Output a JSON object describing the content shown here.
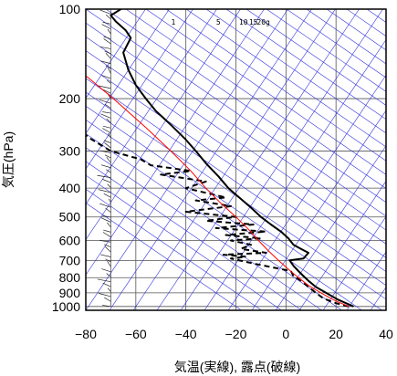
{
  "chart_data": {
    "type": "line",
    "title": "",
    "xlabel": "気温(実線), 露点(破線)",
    "ylabel": "気圧(hPa)",
    "xlim": [
      -80,
      40
    ],
    "ylim": [
      1030,
      100
    ],
    "yscale": "log",
    "x_ticks": [
      -80,
      -60,
      -40,
      -20,
      0,
      20,
      40
    ],
    "y_ticks": [
      100,
      200,
      300,
      400,
      500,
      600,
      700,
      800,
      900,
      1000
    ],
    "grid": true,
    "mixing_ratio_labels": [
      {
        "label": "1",
        "t": -45
      },
      {
        "label": "5",
        "t": -27
      },
      {
        "label": "10",
        "t": -17
      },
      {
        "label": "15",
        "t": -13
      },
      {
        "label": "20g",
        "t": -9
      }
    ],
    "series": [
      {
        "role": "temperature",
        "style": "solid",
        "color": "#000000",
        "points": [
          [
            27,
            1000
          ],
          [
            24,
            975
          ],
          [
            21,
            950
          ],
          [
            18,
            920
          ],
          [
            15,
            890
          ],
          [
            12,
            860
          ],
          [
            9,
            820
          ],
          [
            7,
            790
          ],
          [
            5,
            760
          ],
          [
            3,
            730
          ],
          [
            1.5,
            700
          ],
          [
            7,
            690
          ],
          [
            9,
            660
          ],
          [
            6,
            640
          ],
          [
            3,
            620
          ],
          [
            1,
            590
          ],
          [
            -2,
            560
          ],
          [
            -6,
            530
          ],
          [
            -10,
            500
          ],
          [
            -14,
            465
          ],
          [
            -18,
            435
          ],
          [
            -23,
            400
          ],
          [
            -27,
            365
          ],
          [
            -32,
            330
          ],
          [
            -36,
            300
          ],
          [
            -40,
            275
          ],
          [
            -46,
            245
          ],
          [
            -52,
            220
          ],
          [
            -56,
            200
          ],
          [
            -60,
            180
          ],
          [
            -63,
            160
          ],
          [
            -65,
            140
          ],
          [
            -62,
            125
          ],
          [
            -64,
            118
          ],
          [
            -68,
            110
          ],
          [
            -70,
            105
          ],
          [
            -66,
            100
          ]
        ]
      },
      {
        "role": "dewpoint",
        "style": "dashed",
        "color": "#000000",
        "points": [
          [
            25,
            1000
          ],
          [
            20,
            975
          ],
          [
            15,
            940
          ],
          [
            12,
            900
          ],
          [
            9,
            860
          ],
          [
            6,
            820
          ],
          [
            3,
            790
          ],
          [
            2,
            760
          ],
          [
            -12,
            720
          ],
          [
            -22,
            690
          ],
          [
            -16,
            680
          ],
          [
            -25,
            670
          ],
          [
            -8,
            660
          ],
          [
            -18,
            640
          ],
          [
            -14,
            620
          ],
          [
            -22,
            600
          ],
          [
            -10,
            590
          ],
          [
            -24,
            575
          ],
          [
            -8,
            560
          ],
          [
            -28,
            545
          ],
          [
            -13,
            530
          ],
          [
            -32,
            515
          ],
          [
            -20,
            500
          ],
          [
            -40,
            480
          ],
          [
            -22,
            460
          ],
          [
            -36,
            440
          ],
          [
            -24,
            430
          ],
          [
            -40,
            400
          ],
          [
            -32,
            380
          ],
          [
            -50,
            360
          ],
          [
            -38,
            350
          ],
          [
            -54,
            335
          ],
          [
            -58,
            320
          ],
          [
            -70,
            300
          ],
          [
            -79,
            270
          ],
          [
            -82,
            255
          ]
        ]
      },
      {
        "role": "parcel",
        "style": "solid",
        "color": "#ff0000",
        "points": [
          [
            25,
            1000
          ],
          [
            19,
            950
          ],
          [
            14,
            900
          ],
          [
            9,
            850
          ],
          [
            5,
            800
          ],
          [
            1,
            750
          ],
          [
            -3,
            700
          ],
          [
            -7,
            650
          ],
          [
            -11,
            600
          ],
          [
            -15,
            550
          ],
          [
            -20,
            500
          ],
          [
            -26,
            450
          ],
          [
            -32,
            400
          ],
          [
            -38,
            350
          ],
          [
            -46,
            300
          ],
          [
            -56,
            250
          ],
          [
            -69,
            200
          ],
          [
            -79,
            170
          ],
          [
            -88,
            150
          ]
        ]
      }
    ],
    "wind_barbs_pressure_range": [
      1000,
      100
    ],
    "colors": {
      "grid": "#555555",
      "background_lines": "#3333dd",
      "temperature": "#000000",
      "dewpoint": "#000000",
      "parcel": "#ff0000"
    }
  }
}
